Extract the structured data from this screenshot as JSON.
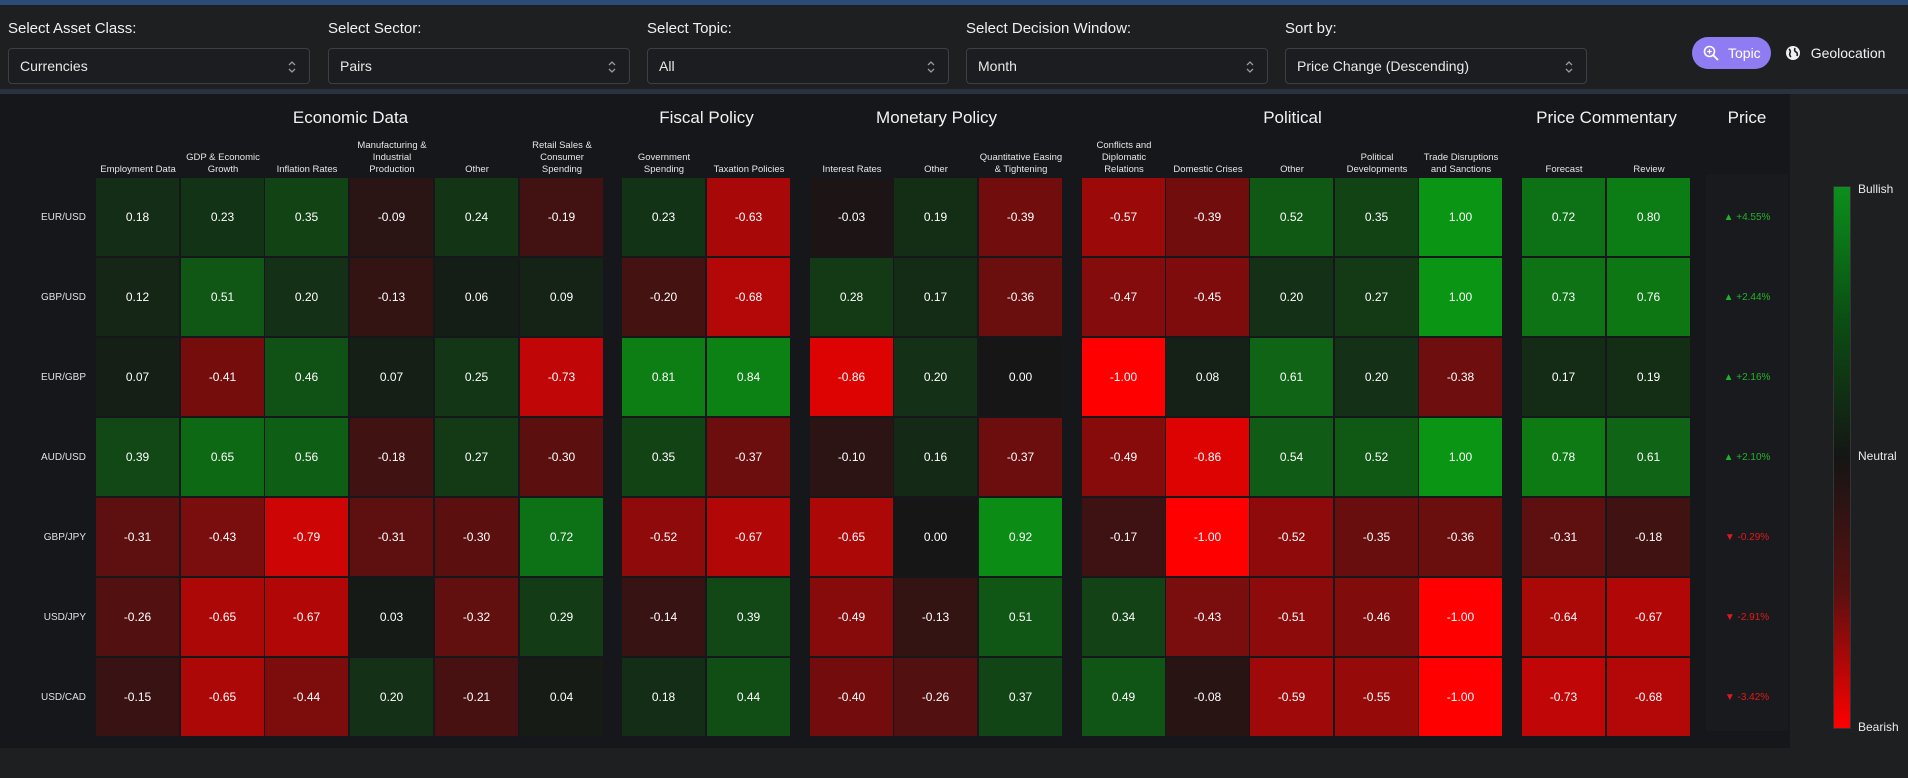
{
  "controls": [
    {
      "label": "Select Asset Class:",
      "value": "Currencies"
    },
    {
      "label": "Select Sector:",
      "value": "Pairs"
    },
    {
      "label": "Select Topic:",
      "value": "All"
    },
    {
      "label": "Select Decision Window:",
      "value": "Month"
    },
    {
      "label": "Sort by:",
      "value": "Price Change (Descending)"
    }
  ],
  "view_toggle": {
    "topic": "Topic",
    "geolocation": "Geolocation"
  },
  "groups": [
    "Economic Data",
    "Fiscal Policy",
    "Monetary Policy",
    "Political",
    "Price Commentary",
    "Price"
  ],
  "columns": [
    "Employment Data",
    "GDP & Economic Growth",
    "Inflation Rates",
    "Manufacturing & Industrial Production",
    "Other",
    "Retail Sales & Consumer Spending",
    "Government Spending",
    "Taxation Policies",
    "Interest Rates",
    "Other",
    "Quantitative Easing & Tightening",
    "Conflicts and Diplomatic Relations",
    "Domestic Crises",
    "Other",
    "Political Developments",
    "Trade Disruptions and Sanctions",
    "Forecast",
    "Review"
  ],
  "rows": [
    {
      "pair": "EUR/USD",
      "values": [
        "0.18",
        "0.23",
        "0.35",
        "-0.09",
        "0.24",
        "-0.19",
        "0.23",
        "-0.63",
        "-0.03",
        "0.19",
        "-0.39",
        "-0.57",
        "-0.39",
        "0.52",
        "0.35",
        "1.00",
        "0.72",
        "0.80"
      ],
      "price": "▲ +4.55%",
      "dir": "up"
    },
    {
      "pair": "GBP/USD",
      "values": [
        "0.12",
        "0.51",
        "0.20",
        "-0.13",
        "0.06",
        "0.09",
        "-0.20",
        "-0.68",
        "0.28",
        "0.17",
        "-0.36",
        "-0.47",
        "-0.45",
        "0.20",
        "0.27",
        "1.00",
        "0.73",
        "0.76"
      ],
      "price": "▲ +2.44%",
      "dir": "up"
    },
    {
      "pair": "EUR/GBP",
      "values": [
        "0.07",
        "-0.41",
        "0.46",
        "0.07",
        "0.25",
        "-0.73",
        "0.81",
        "0.84",
        "-0.86",
        "0.20",
        "0.00",
        "-1.00",
        "0.08",
        "0.61",
        "0.20",
        "-0.38",
        "0.17",
        "0.19"
      ],
      "price": "▲ +2.16%",
      "dir": "up"
    },
    {
      "pair": "AUD/USD",
      "values": [
        "0.39",
        "0.65",
        "0.56",
        "-0.18",
        "0.27",
        "-0.30",
        "0.35",
        "-0.37",
        "-0.10",
        "0.16",
        "-0.37",
        "-0.49",
        "-0.86",
        "0.54",
        "0.52",
        "1.00",
        "0.78",
        "0.61"
      ],
      "price": "▲ +2.10%",
      "dir": "up"
    },
    {
      "pair": "GBP/JPY",
      "values": [
        "-0.31",
        "-0.43",
        "-0.79",
        "-0.31",
        "-0.30",
        "0.72",
        "-0.52",
        "-0.67",
        "-0.65",
        "0.00",
        "0.92",
        "-0.17",
        "-1.00",
        "-0.52",
        "-0.35",
        "-0.36",
        "-0.31",
        "-0.18"
      ],
      "price": "▼ -0.29%",
      "dir": "down"
    },
    {
      "pair": "USD/JPY",
      "values": [
        "-0.26",
        "-0.65",
        "-0.67",
        "0.03",
        "-0.32",
        "0.29",
        "-0.14",
        "0.39",
        "-0.49",
        "-0.13",
        "0.51",
        "0.34",
        "-0.43",
        "-0.51",
        "-0.46",
        "-1.00",
        "-0.64",
        "-0.67"
      ],
      "price": "▼ -2.91%",
      "dir": "down"
    },
    {
      "pair": "USD/CAD",
      "values": [
        "-0.15",
        "-0.65",
        "-0.44",
        "0.20",
        "-0.21",
        "0.04",
        "0.18",
        "0.44",
        "-0.40",
        "-0.26",
        "0.37",
        "0.49",
        "-0.08",
        "-0.59",
        "-0.55",
        "-1.00",
        "-0.73",
        "-0.68"
      ],
      "price": "▼ -3.42%",
      "dir": "down"
    }
  ],
  "legend": {
    "top": "Bullish",
    "middle": "Neutral",
    "bottom": "Bearish"
  },
  "colors": {
    "accent": "#8f7cf3",
    "bullish": "#0b8f1d",
    "neutral": "#151515",
    "bearish": "#ff0000",
    "up": "#22b22a",
    "down": "#e01b1b"
  }
}
